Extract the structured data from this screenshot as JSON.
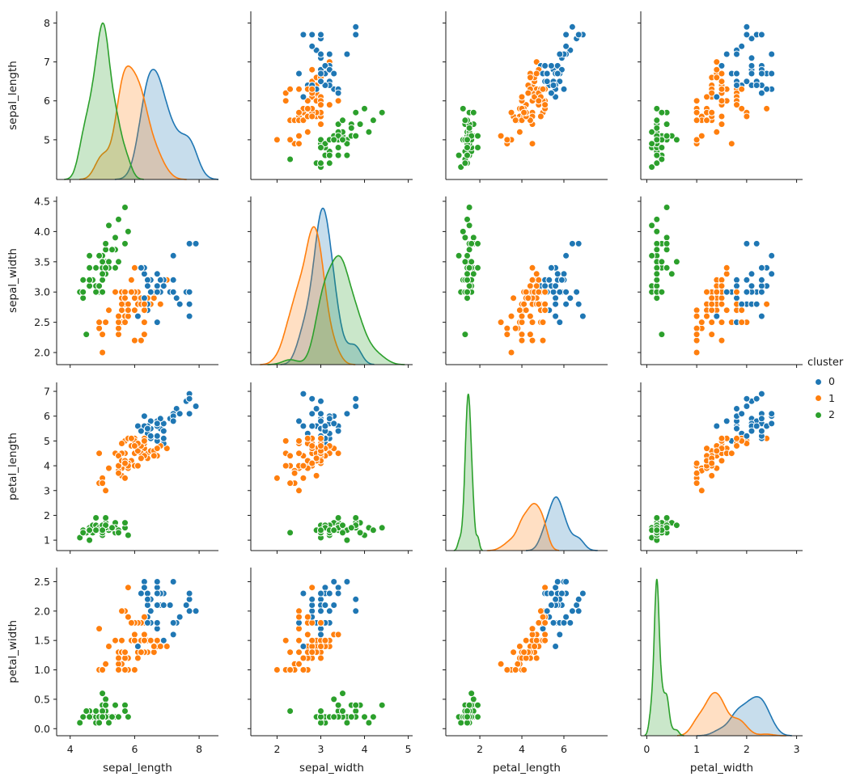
{
  "chart_data": {
    "type": "scatter_matrix_pairplot",
    "diagonal": "kde",
    "background": "#ffffff",
    "text_color": "#1a1a1a",
    "spine_color": "#1a1a1a",
    "variables": [
      "sepal_length",
      "sepal_width",
      "petal_length",
      "petal_width"
    ],
    "legend": {
      "title": "cluster",
      "entries": [
        {
          "label": "0",
          "color": "#1f77b4"
        },
        {
          "label": "1",
          "color": "#ff7f0e"
        },
        {
          "label": "2",
          "color": "#2ca02c"
        }
      ]
    },
    "palette": [
      "#1f77b4",
      "#ff7f0e",
      "#2ca02c"
    ],
    "axes": [
      {
        "name": "sepal_length",
        "xlim": [
          3.58,
          8.6
        ],
        "ylim": [
          3.98,
          8.3
        ],
        "xticks": [
          4,
          6,
          8
        ],
        "xtick_labels": [
          "4",
          "6",
          "8"
        ],
        "yticks": [
          5,
          6,
          7,
          8
        ],
        "ytick_labels": [
          "5",
          "6",
          "7",
          "8"
        ]
      },
      {
        "name": "sepal_width",
        "xlim": [
          1.4,
          5.1
        ],
        "ylim": [
          1.8,
          4.58
        ],
        "xticks": [
          2,
          3,
          4,
          5
        ],
        "xtick_labels": [
          "2",
          "3",
          "4",
          "5"
        ],
        "yticks": [
          2.0,
          2.5,
          3.0,
          3.5,
          4.0,
          4.5
        ],
        "ytick_labels": [
          "2.0",
          "2.5",
          "3.0",
          "3.5",
          "4.0",
          "4.5"
        ]
      },
      {
        "name": "petal_length",
        "xlim": [
          0.38,
          8.08
        ],
        "ylim": [
          0.58,
          7.36
        ],
        "xticks": [
          2,
          4,
          6
        ],
        "xtick_labels": [
          "2",
          "4",
          "6"
        ],
        "yticks": [
          1,
          2,
          3,
          4,
          5,
          6,
          7
        ],
        "ytick_labels": [
          "1",
          "2",
          "3",
          "4",
          "5",
          "6",
          "7"
        ]
      },
      {
        "name": "petal_width",
        "xlim": [
          -0.12,
          3.12
        ],
        "ylim": [
          -0.12,
          2.74
        ],
        "xticks": [
          0,
          1,
          2,
          3
        ],
        "xtick_labels": [
          "0",
          "1",
          "2",
          "3"
        ],
        "yticks": [
          0.0,
          0.5,
          1.0,
          1.5,
          2.0,
          2.5
        ],
        "ytick_labels": [
          "0.0",
          "0.5",
          "1.0",
          "1.5",
          "2.0",
          "2.5"
        ]
      }
    ],
    "data": {
      "sepal_length": [
        5.1,
        4.9,
        4.7,
        4.6,
        5.0,
        5.4,
        4.6,
        5.0,
        4.4,
        4.9,
        5.4,
        4.8,
        4.8,
        4.3,
        5.8,
        5.7,
        5.4,
        5.1,
        5.7,
        5.1,
        5.4,
        5.1,
        4.6,
        5.1,
        4.8,
        5.0,
        5.0,
        5.2,
        5.2,
        4.7,
        4.8,
        5.4,
        5.2,
        5.5,
        4.9,
        5.0,
        5.5,
        4.9,
        4.4,
        5.1,
        5.0,
        4.5,
        4.4,
        5.0,
        5.1,
        4.8,
        5.1,
        4.6,
        5.3,
        5.0,
        7.0,
        6.4,
        6.9,
        5.5,
        6.5,
        5.7,
        6.3,
        4.9,
        6.6,
        5.2,
        5.0,
        5.9,
        6.0,
        6.1,
        5.6,
        6.7,
        5.6,
        5.8,
        6.2,
        5.6,
        5.9,
        6.1,
        6.3,
        6.1,
        6.4,
        6.6,
        6.8,
        6.7,
        6.0,
        5.7,
        5.5,
        5.5,
        5.8,
        6.0,
        5.4,
        6.0,
        6.7,
        6.3,
        5.6,
        5.5,
        5.5,
        6.1,
        5.8,
        5.0,
        5.6,
        5.7,
        5.7,
        6.2,
        5.1,
        5.7,
        6.3,
        5.8,
        7.1,
        6.3,
        6.5,
        7.6,
        4.9,
        7.3,
        6.7,
        7.2,
        6.5,
        6.4,
        6.8,
        5.7,
        5.8,
        6.4,
        6.5,
        7.7,
        7.7,
        6.0,
        6.9,
        5.6,
        7.7,
        6.3,
        6.7,
        7.2,
        6.2,
        6.1,
        6.4,
        7.2,
        7.4,
        7.9,
        6.4,
        6.3,
        6.1,
        7.7,
        6.3,
        6.4,
        6.0,
        6.9,
        6.7,
        6.9,
        5.8,
        6.8,
        6.7,
        6.7,
        6.3,
        6.5,
        6.2,
        5.9
      ],
      "sepal_width": [
        3.5,
        3.0,
        3.2,
        3.1,
        3.6,
        3.9,
        3.4,
        3.4,
        2.9,
        3.1,
        3.7,
        3.4,
        3.0,
        3.0,
        4.0,
        4.4,
        3.9,
        3.5,
        3.8,
        3.8,
        3.4,
        3.7,
        3.6,
        3.3,
        3.4,
        3.0,
        3.4,
        3.5,
        3.4,
        3.2,
        3.1,
        3.4,
        4.1,
        4.2,
        3.1,
        3.2,
        3.5,
        3.6,
        3.0,
        3.4,
        3.5,
        2.3,
        3.2,
        3.5,
        3.8,
        3.0,
        3.8,
        3.2,
        3.7,
        3.3,
        3.2,
        3.2,
        3.1,
        2.3,
        2.8,
        2.8,
        3.3,
        2.4,
        2.9,
        2.7,
        2.0,
        3.0,
        2.2,
        2.9,
        2.9,
        3.1,
        3.0,
        2.7,
        2.2,
        2.5,
        3.2,
        2.8,
        2.5,
        2.8,
        2.9,
        3.0,
        2.8,
        3.0,
        2.9,
        2.6,
        2.4,
        2.4,
        2.7,
        2.7,
        3.0,
        3.4,
        3.1,
        2.3,
        3.0,
        2.5,
        2.6,
        3.0,
        2.6,
        2.3,
        2.7,
        3.0,
        2.9,
        2.9,
        2.5,
        2.8,
        3.3,
        2.7,
        3.0,
        2.9,
        3.0,
        3.0,
        2.5,
        2.9,
        2.5,
        3.6,
        3.2,
        2.7,
        3.0,
        2.5,
        2.8,
        3.2,
        3.0,
        3.8,
        2.6,
        2.2,
        3.2,
        2.8,
        2.8,
        2.7,
        3.3,
        3.2,
        2.8,
        3.0,
        2.8,
        3.0,
        2.8,
        3.8,
        2.8,
        2.8,
        2.6,
        3.0,
        3.4,
        3.1,
        3.0,
        3.1,
        3.1,
        3.1,
        2.7,
        3.2,
        3.3,
        3.0,
        2.5,
        3.0,
        3.4,
        3.0
      ],
      "petal_length": [
        1.4,
        1.4,
        1.3,
        1.5,
        1.4,
        1.7,
        1.4,
        1.5,
        1.4,
        1.5,
        1.5,
        1.6,
        1.4,
        1.1,
        1.2,
        1.5,
        1.3,
        1.4,
        1.7,
        1.5,
        1.7,
        1.5,
        1.0,
        1.7,
        1.9,
        1.6,
        1.6,
        1.5,
        1.4,
        1.6,
        1.6,
        1.5,
        1.5,
        1.4,
        1.5,
        1.2,
        1.3,
        1.4,
        1.3,
        1.5,
        1.3,
        1.3,
        1.3,
        1.6,
        1.9,
        1.4,
        1.6,
        1.4,
        1.5,
        1.4,
        4.7,
        4.5,
        4.9,
        4.0,
        4.6,
        4.5,
        4.7,
        3.3,
        4.6,
        3.9,
        3.5,
        4.2,
        4.0,
        4.7,
        3.6,
        4.4,
        4.5,
        4.1,
        4.5,
        3.9,
        4.8,
        4.0,
        4.9,
        4.7,
        4.3,
        4.4,
        4.8,
        5.0,
        4.5,
        3.5,
        3.8,
        3.7,
        3.9,
        5.1,
        4.5,
        4.5,
        4.7,
        4.4,
        4.1,
        4.0,
        4.4,
        4.6,
        4.0,
        3.3,
        4.2,
        4.2,
        4.2,
        4.3,
        3.0,
        4.1,
        6.0,
        5.1,
        5.9,
        5.6,
        5.8,
        6.6,
        4.5,
        6.3,
        5.8,
        6.1,
        5.1,
        5.3,
        5.5,
        5.0,
        5.1,
        5.3,
        5.5,
        6.7,
        6.9,
        5.0,
        5.7,
        4.9,
        6.7,
        4.9,
        5.7,
        6.0,
        4.8,
        4.9,
        5.6,
        5.8,
        6.1,
        6.4,
        5.6,
        5.1,
        5.6,
        6.1,
        5.6,
        5.5,
        4.8,
        5.4,
        5.6,
        5.1,
        5.1,
        5.9,
        5.7,
        5.2,
        5.0,
        5.2,
        5.4,
        5.1
      ],
      "petal_width": [
        0.2,
        0.2,
        0.2,
        0.2,
        0.2,
        0.4,
        0.3,
        0.2,
        0.2,
        0.1,
        0.2,
        0.2,
        0.1,
        0.1,
        0.2,
        0.4,
        0.4,
        0.3,
        0.3,
        0.3,
        0.2,
        0.4,
        0.2,
        0.5,
        0.2,
        0.2,
        0.4,
        0.2,
        0.2,
        0.2,
        0.2,
        0.4,
        0.1,
        0.2,
        0.2,
        0.2,
        0.2,
        0.1,
        0.2,
        0.2,
        0.3,
        0.3,
        0.2,
        0.6,
        0.4,
        0.3,
        0.2,
        0.2,
        0.2,
        0.2,
        1.4,
        1.5,
        1.5,
        1.3,
        1.5,
        1.3,
        1.6,
        1.0,
        1.3,
        1.4,
        1.0,
        1.5,
        1.0,
        1.4,
        1.3,
        1.4,
        1.5,
        1.0,
        1.5,
        1.1,
        1.8,
        1.3,
        1.5,
        1.2,
        1.3,
        1.4,
        1.4,
        1.7,
        1.5,
        1.0,
        1.1,
        1.0,
        1.2,
        1.6,
        1.5,
        1.6,
        1.5,
        1.3,
        1.3,
        1.3,
        1.2,
        1.4,
        1.2,
        1.0,
        1.3,
        1.2,
        1.3,
        1.3,
        1.1,
        1.3,
        2.5,
        1.9,
        2.1,
        1.8,
        2.2,
        2.1,
        1.7,
        1.8,
        1.8,
        2.5,
        2.0,
        1.9,
        2.1,
        2.0,
        2.4,
        2.3,
        1.8,
        2.2,
        2.3,
        1.5,
        2.3,
        2.0,
        2.0,
        1.8,
        2.1,
        1.8,
        1.8,
        1.8,
        2.1,
        1.6,
        1.9,
        2.0,
        2.2,
        1.5,
        1.4,
        2.3,
        2.4,
        1.8,
        1.8,
        2.1,
        2.4,
        2.3,
        1.9,
        2.3,
        2.5,
        2.3,
        1.9,
        2.0,
        2.3,
        1.8
      ],
      "cluster": [
        2,
        2,
        2,
        2,
        2,
        2,
        2,
        2,
        2,
        2,
        2,
        2,
        2,
        2,
        2,
        2,
        2,
        2,
        2,
        2,
        2,
        2,
        2,
        2,
        2,
        2,
        2,
        2,
        2,
        2,
        2,
        2,
        2,
        2,
        2,
        2,
        2,
        2,
        2,
        2,
        2,
        2,
        2,
        2,
        2,
        2,
        2,
        2,
        2,
        2,
        1,
        1,
        0,
        1,
        1,
        1,
        1,
        1,
        1,
        1,
        1,
        1,
        1,
        1,
        1,
        1,
        1,
        1,
        1,
        1,
        1,
        1,
        1,
        1,
        1,
        1,
        1,
        0,
        1,
        1,
        1,
        1,
        1,
        1,
        1,
        1,
        1,
        1,
        1,
        1,
        1,
        1,
        1,
        1,
        1,
        1,
        1,
        1,
        1,
        1,
        0,
        1,
        0,
        0,
        0,
        0,
        1,
        0,
        0,
        0,
        0,
        0,
        0,
        1,
        1,
        0,
        0,
        0,
        0,
        1,
        0,
        1,
        0,
        1,
        0,
        0,
        1,
        1,
        0,
        0,
        0,
        0,
        0,
        1,
        0,
        0,
        0,
        0,
        1,
        0,
        0,
        0,
        1,
        0,
        0,
        0,
        1,
        0,
        0,
        1
      ]
    },
    "style": {
      "marker_radius": 4,
      "marker_edge_color": "#ffffff",
      "kde_fill_opacity": 0.25,
      "kde_line_width": 1.6
    }
  }
}
